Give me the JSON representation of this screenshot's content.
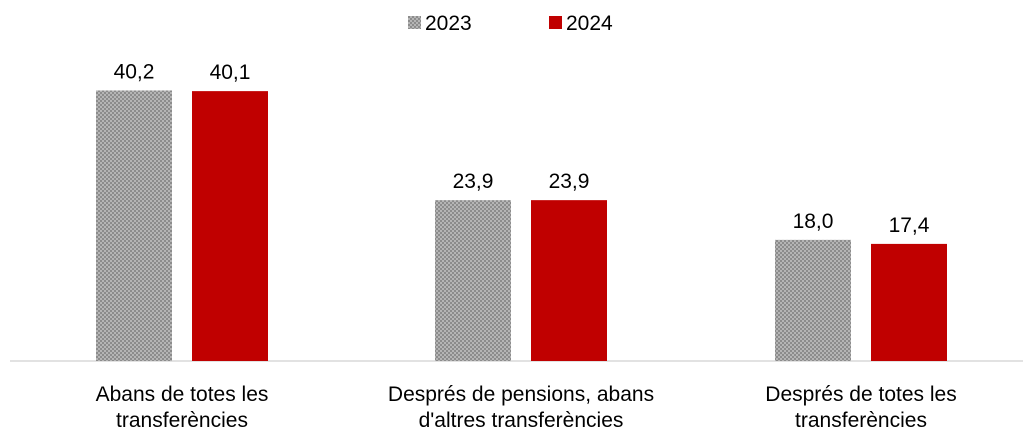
{
  "chart_data": {
    "type": "bar",
    "title": "",
    "xlabel": "",
    "ylabel": "",
    "ylim": [
      0,
      45
    ],
    "grid": false,
    "legend_position": "top-center",
    "categories": [
      [
        "Abans de totes les",
        "transferències"
      ],
      [
        "Després de pensions, abans",
        "d'altres transferències"
      ],
      [
        "Després de totes les",
        "transferències"
      ]
    ],
    "series": [
      {
        "name": "2023",
        "values": [
          40.2,
          23.9,
          18.0
        ],
        "labels": [
          "40,2",
          "23,9",
          "18,0"
        ],
        "color": "#a6a6a6",
        "pattern": "checker"
      },
      {
        "name": "2024",
        "values": [
          40.1,
          23.9,
          17.4
        ],
        "labels": [
          "40,1",
          "23,9",
          "17,4"
        ],
        "color": "#c00000",
        "pattern": "solid"
      }
    ]
  }
}
